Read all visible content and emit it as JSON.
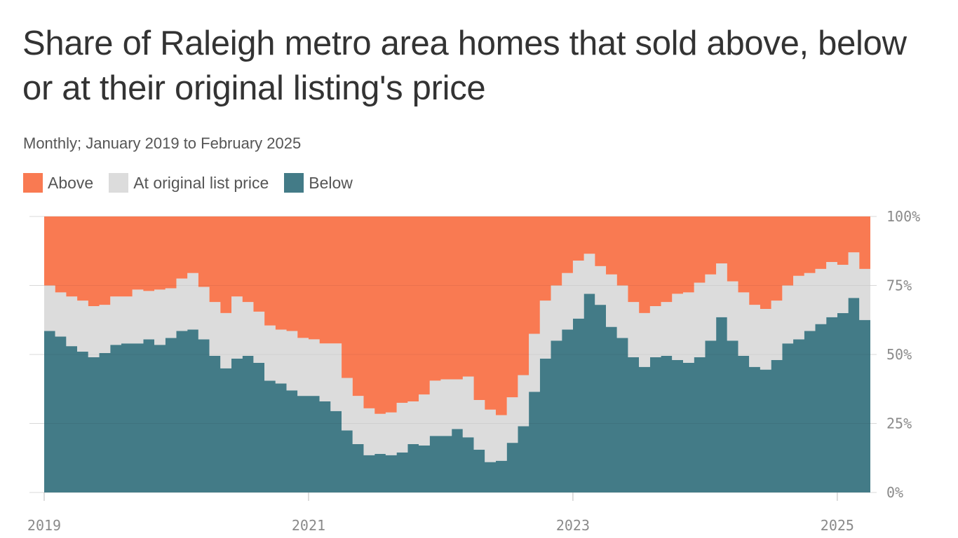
{
  "title": "Share of Raleigh metro area homes that sold above, below or at their original listing's price",
  "subtitle": "Monthly; January 2019 to February 2025",
  "legend": {
    "above": "Above",
    "at": "At original list price",
    "below": "Below"
  },
  "colors": {
    "above": "#f97a52",
    "at": "#dcdcdc",
    "below": "#437b87",
    "grid": "#d8d8d8",
    "axis_text": "#8a8a8a"
  },
  "chart_data": {
    "type": "area",
    "stacked": true,
    "stepped": true,
    "frequency": "monthly",
    "x_start": "2019-01",
    "x_end": "2025-02",
    "x_ticks": [
      "2019",
      "2021",
      "2023",
      "2025"
    ],
    "y_ticks": [
      "0%",
      "25%",
      "50%",
      "75%",
      "100%"
    ],
    "ylim": [
      0,
      100
    ],
    "grid": true,
    "legend_position": "top-left",
    "series": [
      {
        "name": "Below",
        "values": [
          58.5,
          56.5,
          53,
          51,
          49,
          50.5,
          53.5,
          54,
          54,
          55.5,
          53.5,
          56,
          58.5,
          59,
          55.5,
          49.5,
          45,
          48.5,
          49.5,
          47,
          40.5,
          39.5,
          37,
          35,
          35,
          33,
          29.5,
          22.5,
          17.5,
          13.5,
          14,
          13.5,
          14.5,
          17.5,
          17,
          20.5,
          20.5,
          23,
          20,
          15.5,
          11,
          11.5,
          18,
          24,
          36.5,
          48.5,
          55,
          59,
          63,
          72,
          68,
          60,
          56,
          49,
          45.5,
          49,
          49.5,
          48,
          47,
          49,
          55,
          63.5,
          55,
          49.5,
          45.5,
          44.5,
          48,
          54,
          55.5,
          58.5,
          61,
          63.5,
          65,
          70.5,
          62.5
        ]
      },
      {
        "name": "At original list price",
        "values": [
          16.5,
          16,
          18,
          18.5,
          18.5,
          17.5,
          17.5,
          17,
          19.5,
          17.5,
          20,
          18,
          19,
          20.5,
          19,
          19.5,
          20,
          22.5,
          19.5,
          18.5,
          20,
          19.5,
          21.5,
          21,
          20.5,
          21,
          24.5,
          19,
          17.5,
          17,
          14.5,
          15.5,
          18,
          15.5,
          18.5,
          20,
          20.5,
          18,
          22,
          18,
          19,
          16.5,
          16.5,
          18.5,
          21,
          21,
          20,
          20.5,
          21,
          14.5,
          14,
          19,
          19,
          20,
          19.5,
          18.5,
          19.5,
          24,
          25.5,
          27,
          24,
          19.5,
          21.5,
          23,
          22.5,
          22,
          21.5,
          21,
          23,
          21,
          20,
          20,
          17.5,
          16.5,
          18.5
        ]
      },
      {
        "name": "Above",
        "values": [
          25,
          27.5,
          29,
          30.5,
          32.5,
          32,
          29,
          29,
          26.5,
          27,
          26.5,
          26,
          22.5,
          20.5,
          25.5,
          31,
          35,
          29,
          31,
          34.5,
          39.5,
          41,
          41.5,
          44,
          44.5,
          46,
          46,
          58.5,
          65,
          69.5,
          71.5,
          71,
          67.5,
          67,
          64.5,
          59.5,
          59,
          59,
          58,
          66.5,
          70,
          72,
          65.5,
          57.5,
          42.5,
          30.5,
          25,
          20.5,
          16,
          13.5,
          18,
          21,
          25,
          31,
          35,
          32.5,
          31,
          28,
          27.5,
          24,
          21,
          17,
          23.5,
          27.5,
          32,
          33.5,
          30.5,
          25,
          21.5,
          20.5,
          19,
          16.5,
          17.5,
          13,
          19
        ]
      }
    ]
  }
}
